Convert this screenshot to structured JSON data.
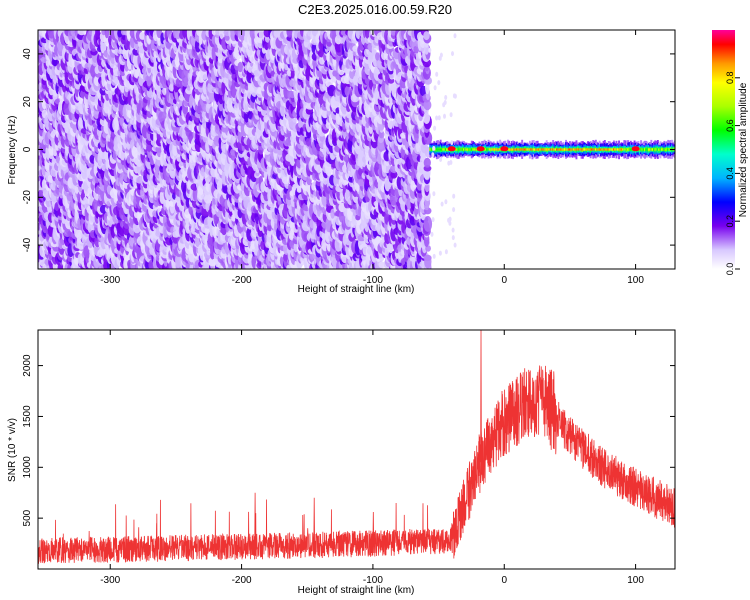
{
  "title": "C2E3.2025.016.00.59.R20",
  "chart_data": [
    {
      "type": "heatmap",
      "xlabel": "Height of straight line (km)",
      "ylabel": "Frequency (Hz)",
      "xlim": [
        -355,
        130
      ],
      "ylim": [
        -50,
        50
      ],
      "xticks": [
        -300,
        -200,
        -100,
        0,
        100
      ],
      "yticks": [
        -40,
        -20,
        0,
        20,
        40
      ],
      "colorbar": {
        "label": "Normalized spectral amplitude",
        "range": [
          0,
          1
        ],
        "ticks": [
          0.0,
          0.2,
          0.4,
          0.6,
          0.8
        ],
        "tick_labels": [
          "0.0",
          "0.2",
          "0.4",
          "0.6",
          "0.8"
        ]
      },
      "regions": [
        {
          "x_range": [
            -355,
            -57
          ],
          "description_level": "noise",
          "amplitude": [
            0.05,
            0.2
          ]
        },
        {
          "x_range": [
            -57,
            130
          ],
          "center_freq": 0,
          "half_width_hz": 3,
          "amplitude_peak": 0.95
        }
      ]
    },
    {
      "type": "line",
      "xlabel": "Height of straight line (km)",
      "ylabel": "SNR (10 * v/v)",
      "xlim": [
        -355,
        130
      ],
      "ylim": [
        0,
        2350
      ],
      "xticks": [
        -300,
        -200,
        -100,
        0,
        100
      ],
      "yticks": [
        500,
        1000,
        1500,
        2000
      ],
      "series": [
        {
          "color": "#ee3333",
          "envelope": [
            {
              "x": -355,
              "y": 180
            },
            {
              "x": -300,
              "y": 190
            },
            {
              "x": -200,
              "y": 220
            },
            {
              "x": -100,
              "y": 250
            },
            {
              "x": -40,
              "y": 280
            },
            {
              "x": -30,
              "y": 650
            },
            {
              "x": -20,
              "y": 1000
            },
            {
              "x": -10,
              "y": 1250
            },
            {
              "x": 0,
              "y": 1450
            },
            {
              "x": 20,
              "y": 1650
            },
            {
              "x": 30,
              "y": 1680
            },
            {
              "x": 50,
              "y": 1300
            },
            {
              "x": 75,
              "y": 1000
            },
            {
              "x": 100,
              "y": 800
            },
            {
              "x": 130,
              "y": 600
            }
          ],
          "spikes": [
            {
              "x": -18,
              "y": 2350
            },
            {
              "x": -265,
              "y": 450
            },
            {
              "x": -190,
              "y": 750
            },
            {
              "x": -145,
              "y": 700
            },
            {
              "x": -100,
              "y": 560
            }
          ]
        }
      ]
    }
  ]
}
